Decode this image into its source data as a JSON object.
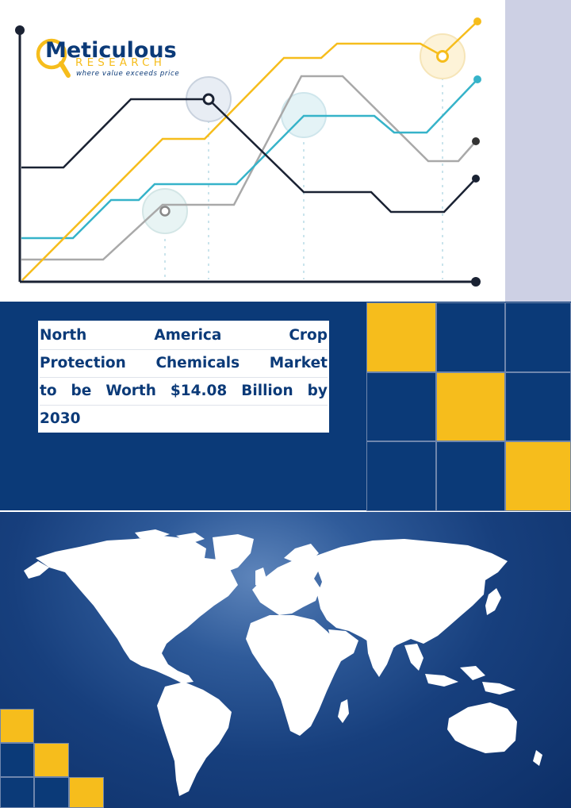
{
  "brand": {
    "name": "Meticulous",
    "sub": "RESEARCH",
    "tagline": "where value exceeds price",
    "colors": {
      "blue": "#0b3a78",
      "yellow": "#f6bd1c",
      "teal": "#36b3c9",
      "gray": "#a9a9a9",
      "dark": "#1a2233"
    }
  },
  "headline": {
    "lines": [
      [
        "North",
        "America",
        "Crop"
      ],
      [
        "Protection",
        "Chemicals",
        "Market"
      ],
      [
        "to",
        "be",
        "Worth",
        "$14.08",
        "Billion",
        "by"
      ],
      [
        "2030"
      ]
    ]
  },
  "decor": {
    "chart_icon": "line-chart-illustration",
    "map_icon": "world-map-illustration"
  }
}
